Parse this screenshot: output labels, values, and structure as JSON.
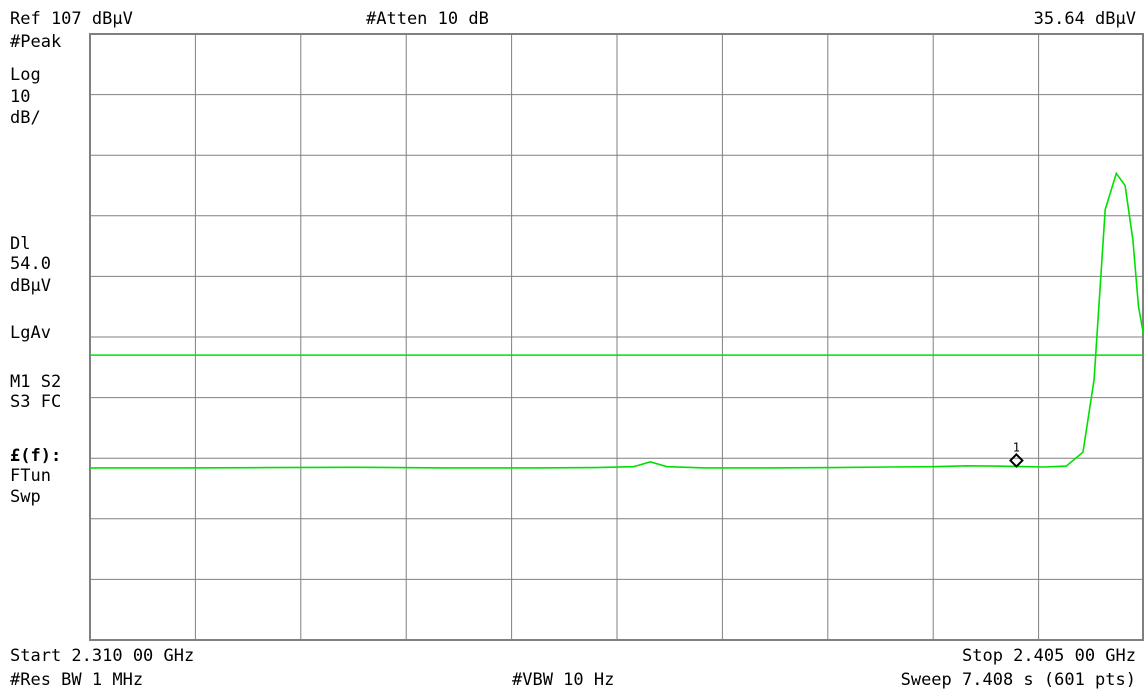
{
  "header": {
    "ref_level": "Ref 107 dBμV",
    "attenuation": "#Atten 10 dB",
    "marker_readout": "35.64 dBμV"
  },
  "sidebar": {
    "detector": "#Peak",
    "scale_type": "Log",
    "scale_value": "10",
    "scale_unit": "dB/",
    "display_line_label": "Dl",
    "display_line_value": "54.0",
    "display_line_unit": "dBμV",
    "average_type": "LgAv",
    "trace_line_1": "M1  S2",
    "trace_line_2": "S3  FC",
    "correction_label": "£(f):",
    "correction_line_1": "FTun",
    "correction_line_2": "Swp"
  },
  "footer": {
    "start": "Start 2.310 00 GHz",
    "stop": "Stop 2.405 00 GHz",
    "res_bw": "#Res BW 1 MHz",
    "vbw": "#VBW 10 Hz",
    "sweep": "Sweep 7.408 s (601 pts)"
  },
  "marker": {
    "label": "1"
  },
  "colors": {
    "trace": "#00e000",
    "grid": "#808080",
    "background": "#ffffff"
  },
  "chart_data": {
    "type": "line",
    "x_range_ghz": [
      2.31,
      2.405
    ],
    "y_range_dbuv": [
      7,
      107
    ],
    "grid": true,
    "display_line_dbuv": 54.0,
    "marker_1": {
      "x_ghz": 2.3935,
      "y_dbuv": 35.64
    },
    "series": [
      {
        "x_ghz": [
          2.31,
          2.318,
          2.326,
          2.334,
          2.342,
          2.35,
          2.3555,
          2.359,
          2.3605,
          2.362,
          2.3655,
          2.371,
          2.377,
          2.382,
          2.386,
          2.389,
          2.3915,
          2.3935,
          2.396,
          2.398,
          2.3995,
          2.4005,
          2.4015,
          2.4025,
          2.4033,
          2.404,
          2.4045,
          2.405
        ],
        "y_dbuv": [
          35.4,
          35.4,
          35.45,
          35.5,
          35.4,
          35.4,
          35.45,
          35.6,
          36.4,
          35.6,
          35.4,
          35.4,
          35.45,
          35.55,
          35.6,
          35.75,
          35.7,
          35.64,
          35.55,
          35.7,
          38.0,
          50.0,
          78.0,
          84.0,
          82.0,
          73.0,
          62.0,
          57.0
        ]
      }
    ]
  }
}
